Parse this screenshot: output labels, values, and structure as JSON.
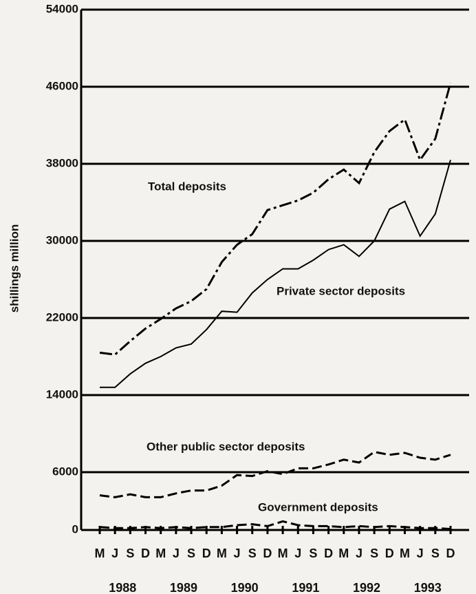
{
  "chart_data": {
    "type": "line",
    "y_label": "shillings million",
    "categories": [
      "M",
      "J",
      "S",
      "D",
      "M",
      "J",
      "S",
      "D",
      "M",
      "J",
      "S",
      "D",
      "M",
      "J",
      "S",
      "D",
      "M",
      "J",
      "S",
      "D",
      "M",
      "J",
      "S",
      "D"
    ],
    "years": [
      "1988",
      "1989",
      "1990",
      "1991",
      "1992",
      "1993"
    ],
    "ylim": [
      0,
      54000
    ],
    "yticks": [
      0,
      6000,
      14000,
      22000,
      30000,
      38000,
      46000,
      54000
    ],
    "grid": true,
    "series": [
      {
        "name": "Total deposits",
        "color": "#000000",
        "style": "dashdot",
        "values": [
          18400,
          18200,
          19600,
          20900,
          21900,
          23000,
          23750,
          25000,
          27800,
          29600,
          30700,
          33200,
          33700,
          34200,
          35000,
          36400,
          37400,
          36000,
          39200,
          41400,
          42600,
          38400,
          40600,
          46400
        ]
      },
      {
        "name": "Private sector deposits",
        "color": "#000000",
        "style": "solid",
        "values": [
          14800,
          14800,
          16200,
          17300,
          18000,
          18900,
          19300,
          20800,
          22700,
          22600,
          24600,
          26000,
          27100,
          27100,
          28000,
          29100,
          29600,
          28400,
          30000,
          33300,
          34100,
          30500,
          32800,
          38400
        ]
      },
      {
        "name": "Other public sector deposits",
        "color": "#000000",
        "style": "dashed",
        "values": [
          3600,
          3400,
          3700,
          3400,
          3400,
          3800,
          4100,
          4100,
          4600,
          5700,
          5600,
          6100,
          5800,
          6400,
          6400,
          6800,
          7300,
          7000,
          8100,
          7800,
          8000,
          7500,
          7300,
          7800
        ]
      },
      {
        "name": "Government deposits",
        "color": "#000000",
        "style": "dashed",
        "values": [
          300,
          200,
          200,
          300,
          200,
          300,
          200,
          300,
          300,
          500,
          600,
          400,
          900,
          500,
          400,
          400,
          300,
          400,
          300,
          400,
          300,
          200,
          200,
          100
        ]
      }
    ]
  }
}
